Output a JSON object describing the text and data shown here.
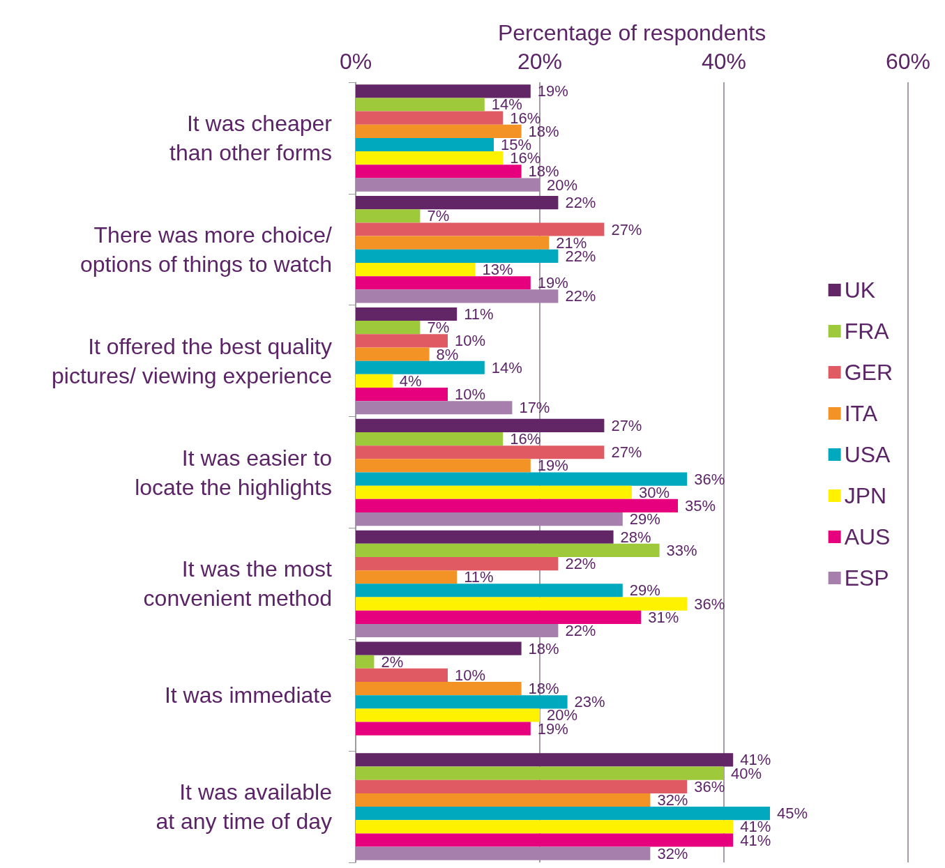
{
  "chart_data": {
    "type": "bar",
    "orientation": "horizontal",
    "xlabel": "Percentage of respondents",
    "categories": [
      "It was cheaper\nthan other forms",
      "There was more choice/\noptions of things to watch",
      "It offered the best quality\npictures/ viewing experience",
      "It was easier to\nlocate the highlights",
      "It was the most\nconvenient method",
      "It was immediate",
      "It was available\nat any time of day"
    ],
    "series": [
      {
        "name": "UK",
        "color": "#622565",
        "values": [
          19,
          22,
          11,
          27,
          28,
          18,
          41
        ],
        "value_labels": [
          "19%",
          "22%",
          "11%",
          "27%",
          "28%",
          "18%",
          "41%"
        ]
      },
      {
        "name": "FRA",
        "color": "#9dc93b",
        "values": [
          14,
          7,
          7,
          16,
          33,
          2,
          40
        ],
        "value_labels": [
          "14%",
          "7%",
          "7%",
          "16%",
          "33%",
          "2%",
          "40%"
        ]
      },
      {
        "name": "GER",
        "color": "#e05a63",
        "values": [
          16,
          27,
          10,
          27,
          22,
          10,
          36
        ],
        "value_labels": [
          "16%",
          "27%",
          "10%",
          "27%",
          "22%",
          "10%",
          "36%"
        ]
      },
      {
        "name": "ITA",
        "color": "#f39325",
        "values": [
          18,
          21,
          8,
          19,
          11,
          18,
          32
        ],
        "value_labels": [
          "18%",
          "21%",
          "8%",
          "19%",
          "11%",
          "18%",
          "32%"
        ]
      },
      {
        "name": "USA",
        "color": "#00a9bd",
        "values": [
          15,
          22,
          14,
          36,
          29,
          23,
          45
        ],
        "value_labels": [
          "15%",
          "22%",
          "14%",
          "36%",
          "29%",
          "23%",
          "45%"
        ]
      },
      {
        "name": "JPN",
        "color": "#fff200",
        "values": [
          16,
          13,
          4,
          30,
          36,
          20,
          41
        ],
        "value_labels": [
          "16%",
          "13%",
          "4%",
          "30%",
          "36%",
          "20%",
          "41%"
        ]
      },
      {
        "name": "AUS",
        "color": "#e6007e",
        "values": [
          18,
          19,
          10,
          35,
          31,
          19,
          41
        ],
        "value_labels": [
          "18%",
          "19%",
          "10%",
          "35%",
          "31%",
          "19%",
          "41%"
        ]
      },
      {
        "name": "ESP",
        "color": "#a67fac",
        "values": [
          20,
          22,
          17,
          29,
          22,
          null,
          32
        ],
        "value_labels": [
          "20%",
          "22%",
          "17%",
          "29%",
          "22%",
          null,
          "32%"
        ]
      }
    ],
    "xlim": [
      0,
      60
    ],
    "xticks": [
      {
        "value": 0,
        "label": "0%"
      },
      {
        "value": 20,
        "label": "20%"
      },
      {
        "value": 40,
        "label": "40%"
      },
      {
        "value": 60,
        "label": "60%"
      }
    ],
    "grid": "x",
    "legend": "right"
  }
}
